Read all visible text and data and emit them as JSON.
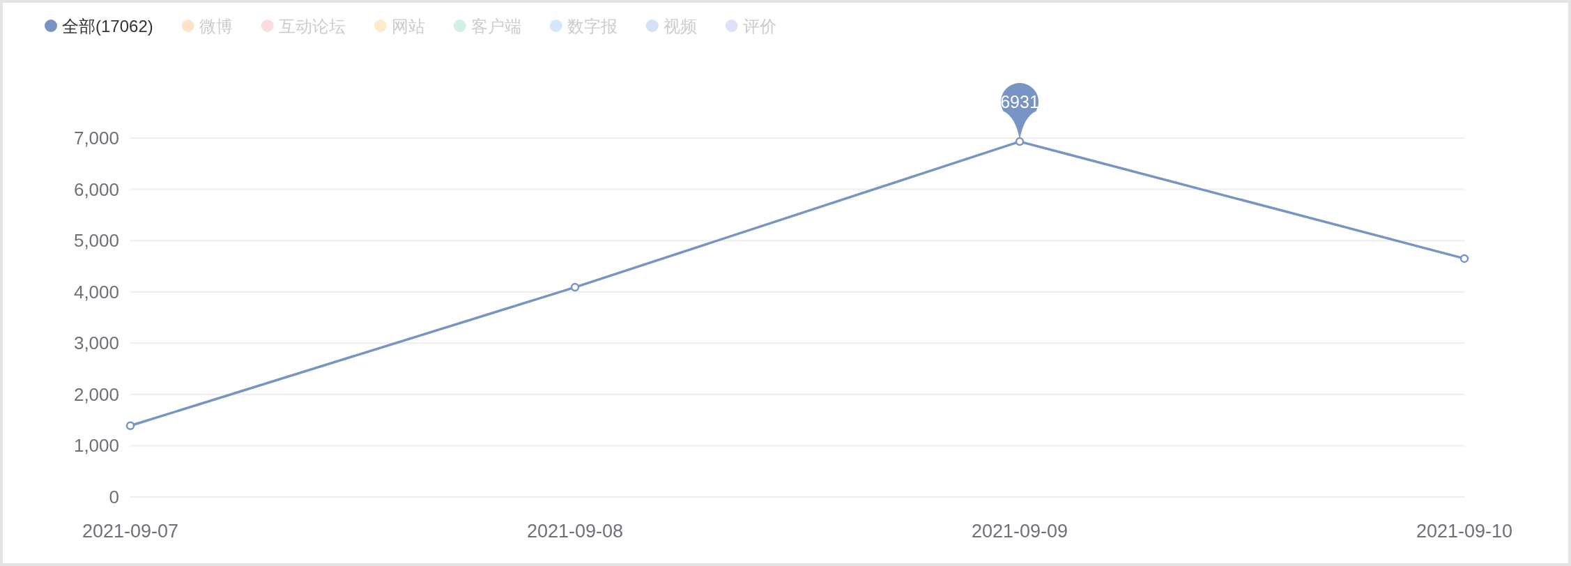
{
  "chart_data": {
    "type": "line",
    "categories": [
      "2021-09-07",
      "2021-09-08",
      "2021-09-09",
      "2021-09-10"
    ],
    "series": [
      {
        "name": "全部(17062)",
        "color": "#7794c4",
        "values": [
          1390,
          4090,
          6931,
          4650
        ]
      },
      {
        "name": "微博",
        "color": "#fde3cc",
        "values": [
          null,
          null,
          null,
          null
        ]
      },
      {
        "name": "互动论坛",
        "color": "#fadddc",
        "values": [
          null,
          null,
          null,
          null
        ]
      },
      {
        "name": "网站",
        "color": "#fdecc9",
        "values": [
          null,
          null,
          null,
          null
        ]
      },
      {
        "name": "客户端",
        "color": "#d3f0e4",
        "values": [
          null,
          null,
          null,
          null
        ]
      },
      {
        "name": "数字报",
        "color": "#d6e7fb",
        "values": [
          null,
          null,
          null,
          null
        ]
      },
      {
        "name": "视频",
        "color": "#d4e1f6",
        "values": [
          null,
          null,
          null,
          null
        ]
      },
      {
        "name": "评价",
        "color": "#e1e1f6",
        "values": [
          null,
          null,
          null,
          null
        ]
      }
    ],
    "ylim": [
      0,
      7000
    ],
    "yticks": [
      0,
      {
        "value": 1000,
        "label": "1,000"
      },
      {
        "value": 2000,
        "label": "2,000"
      },
      {
        "value": 3000,
        "label": "3,000"
      },
      {
        "value": 4000,
        "label": "4,000"
      },
      {
        "value": 5000,
        "label": "5,000"
      },
      {
        "value": 6000,
        "label": "6,000"
      },
      {
        "value": 7000,
        "label": "7,000"
      }
    ],
    "grid": "y",
    "legend": "top left",
    "marker": "circle",
    "line_style": "solid",
    "annotations": [
      {
        "text": "6931",
        "x": "2021-09-09",
        "y": 6931
      }
    ]
  }
}
